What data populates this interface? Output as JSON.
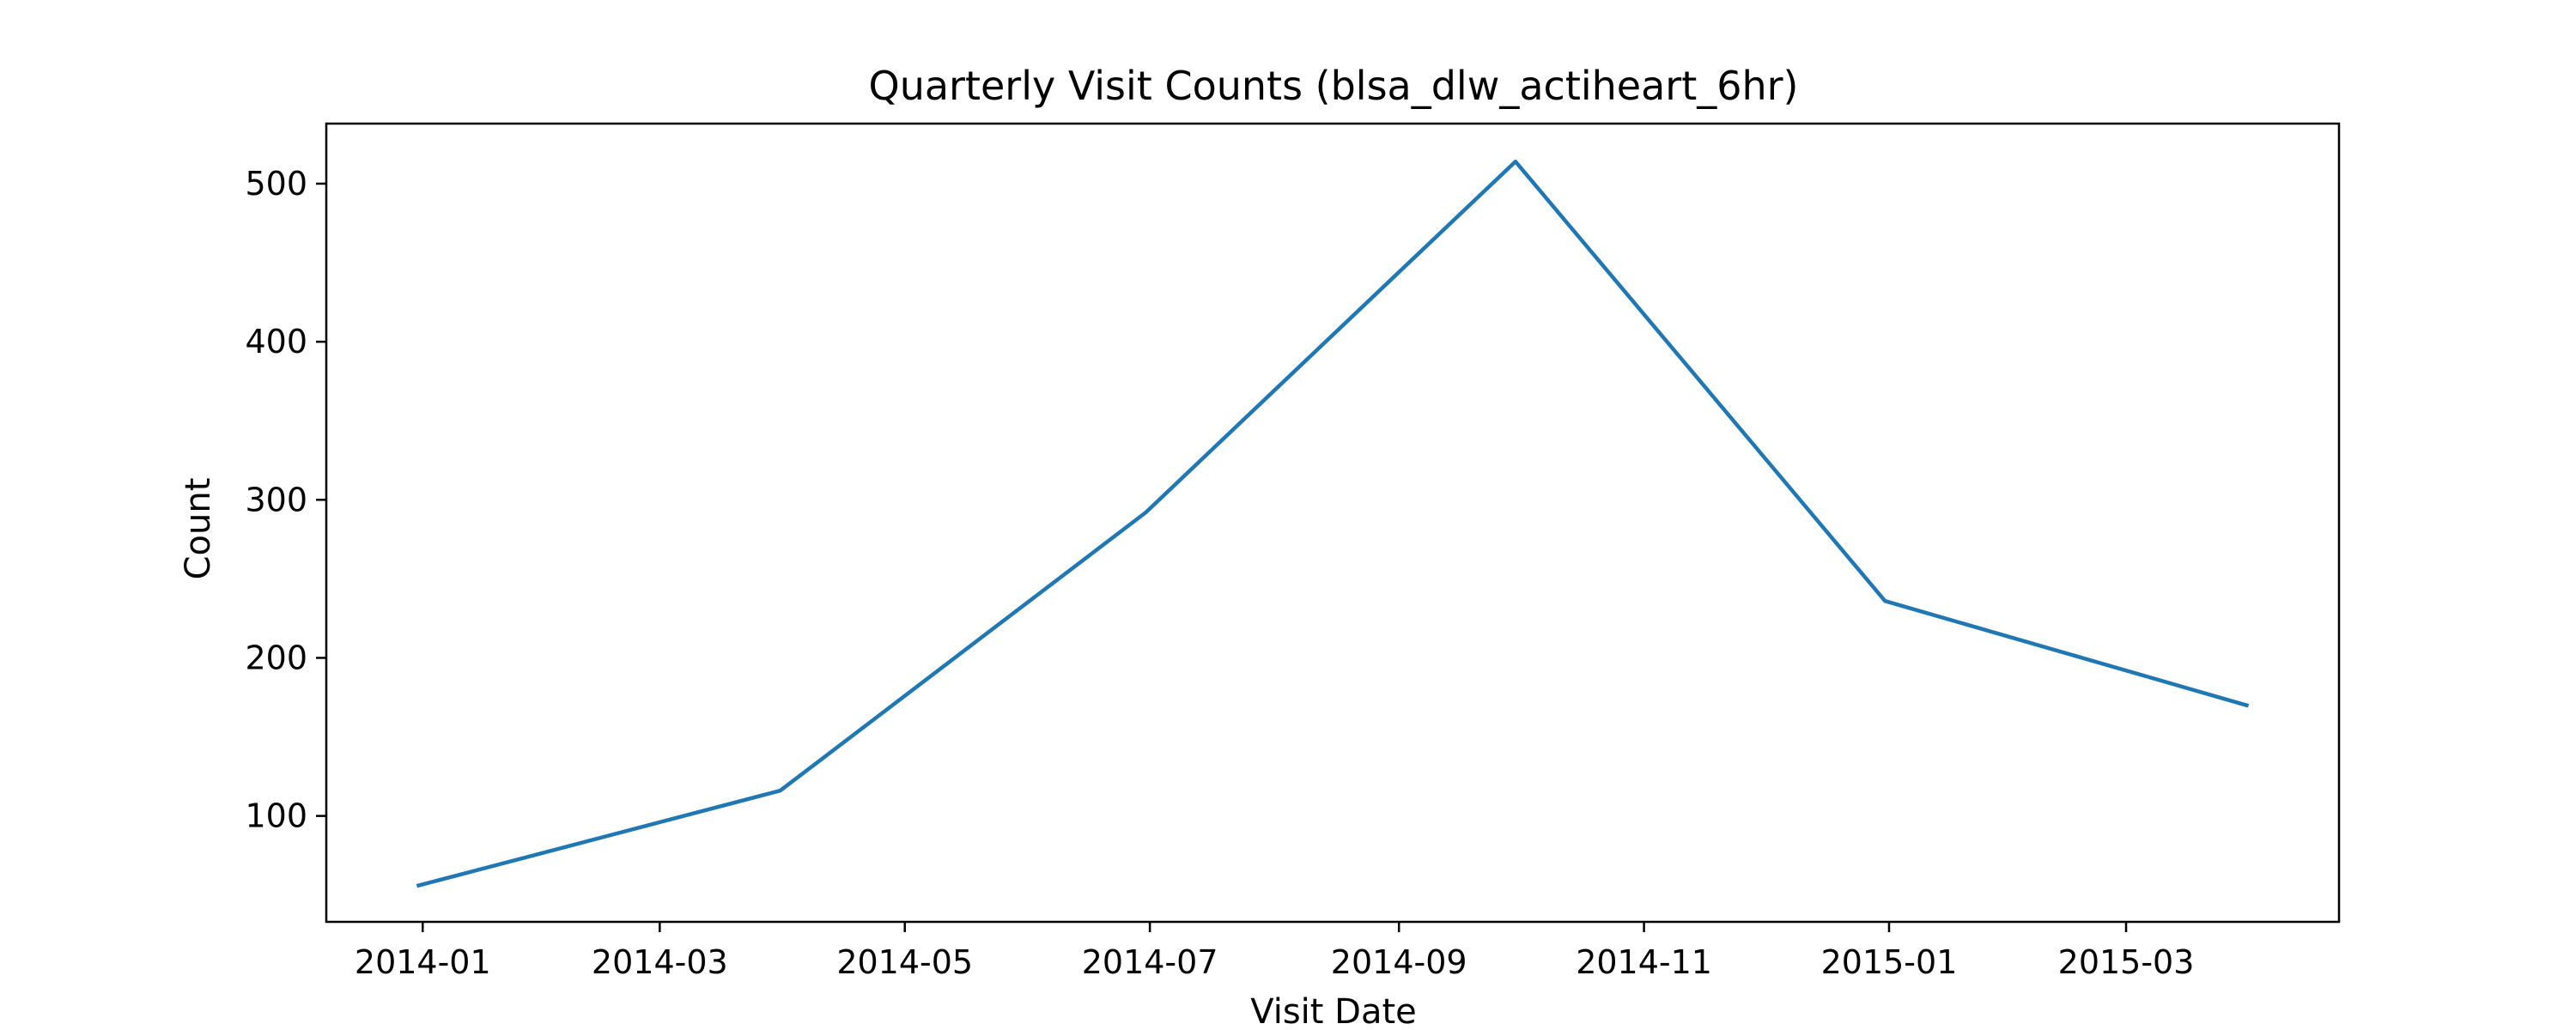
{
  "chart_data": {
    "type": "line",
    "title": "Quarterly Visit Counts (blsa_dlw_actiheart_6hr)",
    "xlabel": "Visit Date",
    "ylabel": "Count",
    "x": [
      "2013-12-31",
      "2014-03-31",
      "2014-06-30",
      "2014-09-30",
      "2014-12-31",
      "2015-03-31"
    ],
    "series": [
      {
        "values": [
          56,
          116,
          292,
          514,
          236,
          170
        ],
        "color": "#1f77b4"
      }
    ],
    "xticks": [
      "2014-01",
      "2014-03",
      "2014-05",
      "2014-07",
      "2014-09",
      "2014-11",
      "2015-01",
      "2015-03"
    ],
    "xlim": [
      "2013-12-08",
      "2015-04-23"
    ],
    "yticks": [
      100,
      200,
      300,
      400,
      500
    ],
    "ylim": [
      33,
      538
    ],
    "grid": false,
    "legend": "none"
  }
}
